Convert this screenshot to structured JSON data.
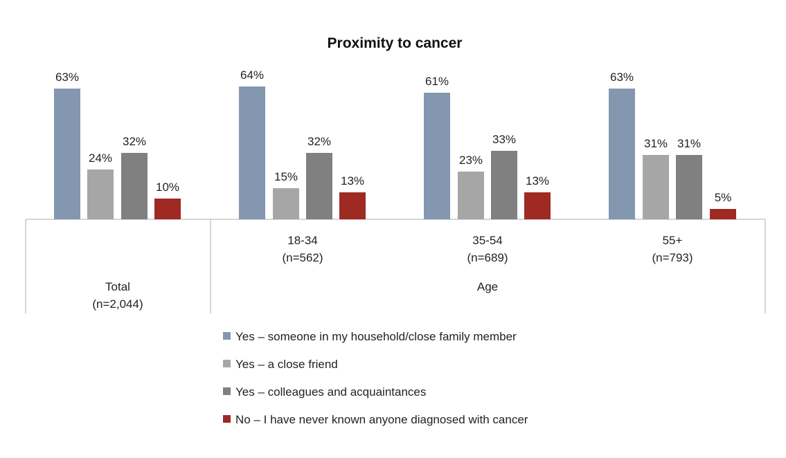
{
  "chart_data": {
    "type": "bar",
    "title": "Proximity to cancer",
    "groups": [
      {
        "label": "Total",
        "sub": "(n=2,044)"
      },
      {
        "label": "Age",
        "sub": ""
      }
    ],
    "categories": [
      {
        "label": "",
        "sub": "",
        "group": 0
      },
      {
        "label": "18-34",
        "sub": "(n=562)",
        "group": 1
      },
      {
        "label": "35-54",
        "sub": "(n=689)",
        "group": 1
      },
      {
        "label": "55+",
        "sub": "(n=793)",
        "group": 1
      }
    ],
    "series": [
      {
        "name": "Yes – someone in my household/close family member",
        "color": "#8497b0",
        "values": [
          63,
          64,
          61,
          63
        ]
      },
      {
        "name": "Yes – a close friend",
        "color": "#a6a6a6",
        "values": [
          24,
          15,
          23,
          31
        ]
      },
      {
        "name": "Yes – colleagues and acquaintances",
        "color": "#808080",
        "values": [
          32,
          32,
          33,
          31
        ]
      },
      {
        "name": "No – I have never known anyone diagnosed with cancer",
        "color": "#9e2a23",
        "values": [
          10,
          13,
          13,
          5
        ]
      }
    ],
    "value_suffix": "%",
    "ylim": [
      0,
      70
    ],
    "grid": false,
    "legend_position": "bottom"
  }
}
